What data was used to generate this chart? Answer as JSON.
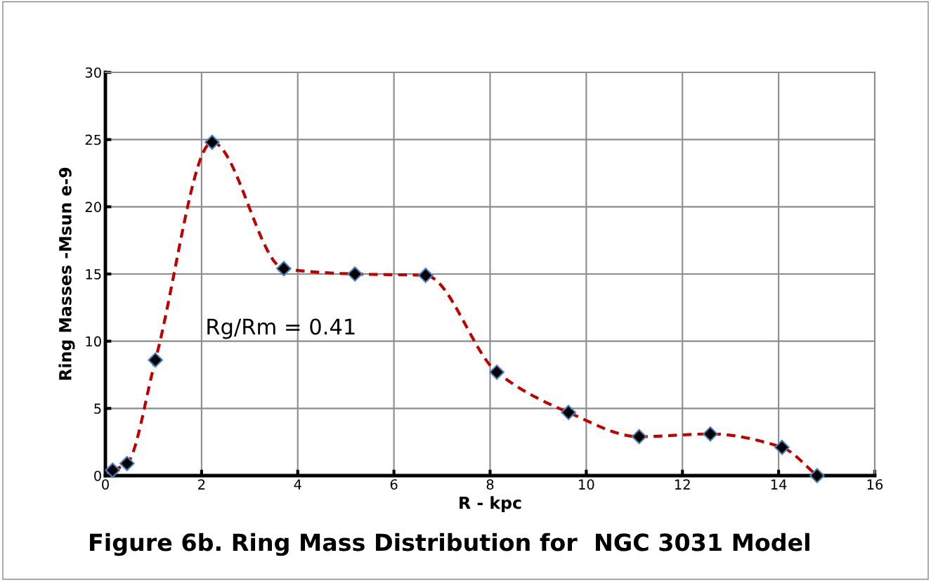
{
  "chart_data": {
    "type": "line",
    "title": "Figure 6b. Ring Mass Distribution for  NGC 3031 Model",
    "xlabel": "R - kpc",
    "ylabel": "Ring Masses -Msun e-9",
    "annotations": [
      "Rg/Rm = 0.41"
    ],
    "series": [
      {
        "color": "#c00000",
        "marker": "diamond",
        "line_style": "dashed",
        "x": [
          0.15,
          0.45,
          1.04,
          2.22,
          3.71,
          5.19,
          6.66,
          8.14,
          9.63,
          11.1,
          12.58,
          14.07,
          14.8
        ],
        "values": [
          0.4,
          0.9,
          8.6,
          24.8,
          15.4,
          15.0,
          14.9,
          7.7,
          4.7,
          2.9,
          3.1,
          2.1,
          0.0
        ]
      }
    ],
    "xlim": [
      0,
      16
    ],
    "xticks": [
      0,
      2,
      4,
      6,
      8,
      10,
      12,
      14,
      16
    ],
    "ylim": [
      0,
      30
    ],
    "yticks": [
      0,
      5,
      10,
      15,
      20,
      25,
      30
    ],
    "grid": true
  }
}
